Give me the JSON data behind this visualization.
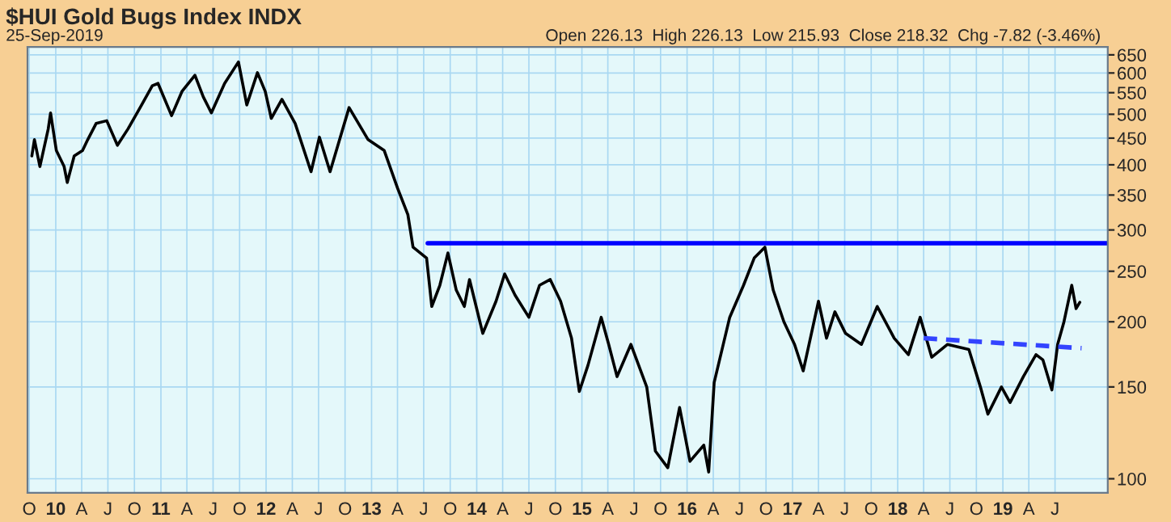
{
  "chart_data": {
    "type": "line",
    "title": "$HUI Gold Bugs Index INDX",
    "subtitle": "25-Sep-2019",
    "annotations": [
      "Open 226.13  High 226.13  Low 215.93  Close 218.32  Chg -7.82 (-3.46%)"
    ],
    "series": [
      {
        "color": "#000000",
        "x": [
          "2009-10-10",
          "2009-10-19",
          "2009-11-07",
          "2009-12-06",
          "2009-12-14",
          "2010-01-03",
          "2010-01-30",
          "2010-02-10",
          "2010-03-06",
          "2010-04-04",
          "2010-04-22",
          "2010-05-21",
          "2010-06-27",
          "2010-08-03",
          "2010-09-09",
          "2010-10-26",
          "2010-12-02",
          "2010-12-22",
          "2011-02-07",
          "2011-03-15",
          "2011-04-29",
          "2011-05-28",
          "2011-06-25",
          "2011-08-10",
          "2011-09-27",
          "2011-10-26",
          "2011-12-02",
          "2011-12-29",
          "2012-01-19",
          "2012-02-25",
          "2012-04-11",
          "2012-06-05",
          "2012-07-04",
          "2012-08-10",
          "2012-10-15",
          "2012-12-20",
          "2013-02-14",
          "2013-04-01",
          "2013-05-07",
          "2013-05-25",
          "2013-07-11",
          "2013-07-29",
          "2013-08-26",
          "2013-09-23",
          "2013-10-22",
          "2013-11-19",
          "2013-12-07",
          "2014-01-22",
          "2014-03-09",
          "2014-04-08",
          "2014-05-14",
          "2014-07-01",
          "2014-08-07",
          "2014-09-13",
          "2014-10-19",
          "2014-11-26",
          "2014-12-23",
          "2015-01-22",
          "2015-03-09",
          "2015-04-04",
          "2015-05-03",
          "2015-06-20",
          "2015-08-14",
          "2015-09-13",
          "2015-10-26",
          "2015-12-06",
          "2016-01-11",
          "2016-02-28",
          "2016-03-16",
          "2016-04-04",
          "2016-05-28",
          "2016-07-15",
          "2016-08-21",
          "2016-09-27",
          "2016-10-26",
          "2016-12-02",
          "2017-01-08",
          "2017-02-07",
          "2017-04-01",
          "2017-04-29",
          "2017-05-28",
          "2017-07-04",
          "2017-08-28",
          "2017-10-22",
          "2017-12-20",
          "2018-02-07",
          "2018-03-20",
          "2018-04-29",
          "2018-06-23",
          "2018-09-05",
          "2018-10-15",
          "2018-11-10",
          "2018-12-27",
          "2019-01-26",
          "2019-03-13",
          "2019-04-26",
          "2019-05-20",
          "2019-06-20",
          "2019-07-10",
          "2019-08-01",
          "2019-08-28",
          "2019-09-12",
          "2019-09-25"
        ],
        "values": [
          416,
          447,
          397,
          469,
          503,
          426,
          397,
          370,
          416,
          426,
          447,
          480,
          486,
          436,
          469,
          521,
          567,
          573,
          497,
          553,
          594,
          540,
          503,
          573,
          630,
          521,
          601,
          553,
          491,
          534,
          480,
          388,
          452,
          388,
          515,
          447,
          426,
          361,
          321,
          278,
          265,
          214,
          235,
          271,
          230,
          214,
          241,
          190,
          219,
          247,
          225,
          204,
          235,
          241,
          219,
          186,
          147,
          165,
          204,
          181,
          157,
          181,
          150,
          113,
          105,
          137,
          108,
          116,
          103,
          153,
          204,
          235,
          265,
          278,
          230,
          200,
          181,
          161,
          219,
          186,
          209,
          190,
          181,
          214,
          186,
          173,
          204,
          171,
          181,
          177,
          150,
          133,
          150,
          140,
          157,
          173,
          169,
          148,
          181,
          200,
          235,
          212,
          218
        ]
      },
      {
        "color": "#0000ff",
        "x": [
          "2013-07-15",
          "2019-12-31"
        ],
        "values": [
          283,
          283
        ]
      },
      {
        "color": "#3344ff",
        "line_style": "dashed",
        "x": [
          "2018-04-01",
          "2019-10-01"
        ],
        "values": [
          186,
          178
        ]
      }
    ],
    "log": true,
    "ylim": [
      94,
      673
    ],
    "yticks": [
      100,
      150,
      200,
      250,
      300,
      350,
      400,
      450,
      500,
      550,
      600,
      650
    ],
    "xlim": [
      "2009-09-25",
      "2019-12-31"
    ],
    "xticks": [
      {
        "value": "2009-10-01",
        "label": "O"
      },
      {
        "value": "2010-01-01",
        "label": "10"
      },
      {
        "value": "2010-04-01",
        "label": "A"
      },
      {
        "value": "2010-07-01",
        "label": "J"
      },
      {
        "value": "2010-10-01",
        "label": "O"
      },
      {
        "value": "2011-01-01",
        "label": "11"
      },
      {
        "value": "2011-04-01",
        "label": "A"
      },
      {
        "value": "2011-07-01",
        "label": "J"
      },
      {
        "value": "2011-10-01",
        "label": "O"
      },
      {
        "value": "2012-01-01",
        "label": "12"
      },
      {
        "value": "2012-04-01",
        "label": "A"
      },
      {
        "value": "2012-07-01",
        "label": "J"
      },
      {
        "value": "2012-10-01",
        "label": "O"
      },
      {
        "value": "2013-01-01",
        "label": "13"
      },
      {
        "value": "2013-04-01",
        "label": "A"
      },
      {
        "value": "2013-07-01",
        "label": "J"
      },
      {
        "value": "2013-10-01",
        "label": "O"
      },
      {
        "value": "2014-01-01",
        "label": "14"
      },
      {
        "value": "2014-04-01",
        "label": "A"
      },
      {
        "value": "2014-07-01",
        "label": "J"
      },
      {
        "value": "2014-10-01",
        "label": "O"
      },
      {
        "value": "2015-01-01",
        "label": "15"
      },
      {
        "value": "2015-04-01",
        "label": "A"
      },
      {
        "value": "2015-07-01",
        "label": "J"
      },
      {
        "value": "2015-10-01",
        "label": "O"
      },
      {
        "value": "2016-01-01",
        "label": "16"
      },
      {
        "value": "2016-04-01",
        "label": "A"
      },
      {
        "value": "2016-07-01",
        "label": "J"
      },
      {
        "value": "2016-10-01",
        "label": "O"
      },
      {
        "value": "2017-01-01",
        "label": "17"
      },
      {
        "value": "2017-04-01",
        "label": "A"
      },
      {
        "value": "2017-07-01",
        "label": "J"
      },
      {
        "value": "2017-10-01",
        "label": "O"
      },
      {
        "value": "2018-01-01",
        "label": "18"
      },
      {
        "value": "2018-04-01",
        "label": "A"
      },
      {
        "value": "2018-07-01",
        "label": "J"
      },
      {
        "value": "2018-10-01",
        "label": "O"
      },
      {
        "value": "2019-01-01",
        "label": "19"
      },
      {
        "value": "2019-04-01",
        "label": "A"
      },
      {
        "value": "2019-07-01",
        "label": "J"
      }
    ],
    "grid": true
  }
}
